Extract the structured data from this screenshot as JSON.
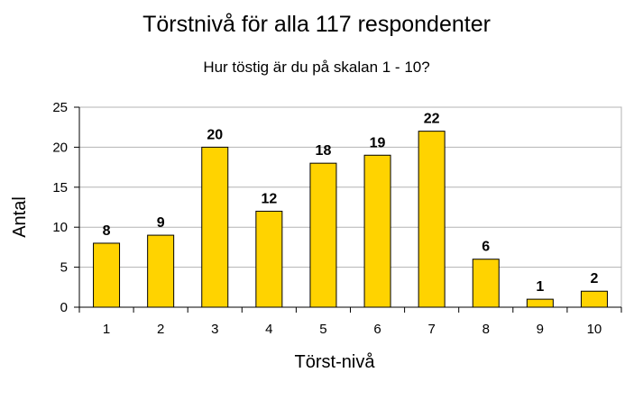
{
  "chart_data": {
    "type": "bar",
    "title": "Törstnivå för alla 117 respondenter",
    "subtitle": "Hur töstig är du på skalan 1 - 10?",
    "xlabel": "Törst-nivå",
    "ylabel": "Antal",
    "categories": [
      "1",
      "2",
      "3",
      "4",
      "5",
      "6",
      "7",
      "8",
      "9",
      "10"
    ],
    "values": [
      8,
      9,
      20,
      12,
      18,
      19,
      22,
      6,
      1,
      2
    ],
    "ylim": [
      0,
      25
    ],
    "yticks": [
      "0",
      "5",
      "10",
      "15",
      "20",
      "25"
    ],
    "grid": true,
    "legend": "none",
    "data_labels": true,
    "colors": {
      "bar_fill": "#FFD300",
      "bar_stroke": "#000000",
      "grid": "#B3B3B3",
      "plot_border": "#B3B3B3",
      "axis": "#000000"
    }
  }
}
